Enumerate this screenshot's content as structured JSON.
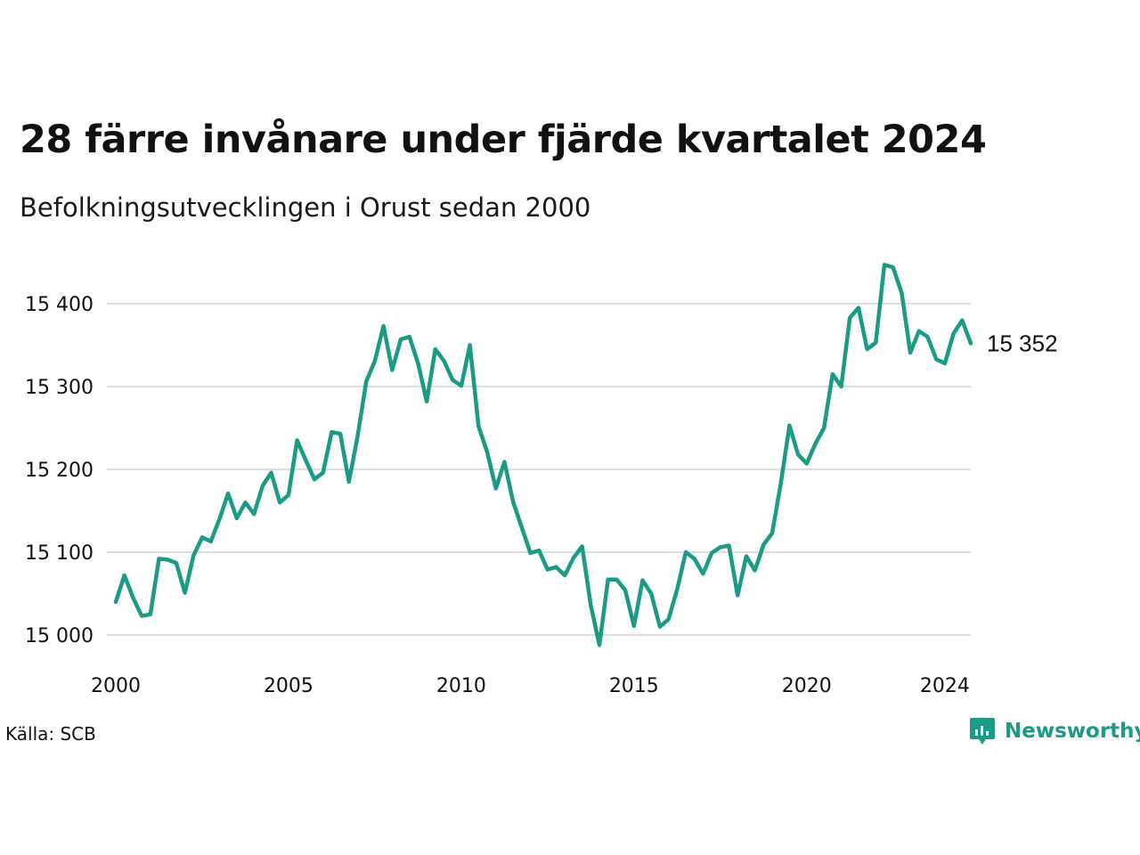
{
  "title": "28 färre invånare under fjärde kvartalet 2024",
  "subtitle": "Befolkningsutvecklingen i Orust sedan 2000",
  "source": "Källa: SCB",
  "brand": {
    "name": "Newsworthy",
    "logo_icon": "chart-bubble-icon",
    "color": "#1b9a85"
  },
  "colors": {
    "line": "#1b9a85",
    "grid": "#dddddd",
    "text": "#111111"
  },
  "end_label": "15 352",
  "chart_data": {
    "type": "line",
    "title": "28 färre invånare under fjärde kvartalet 2024",
    "subtitle": "Befolkningsutvecklingen i Orust sedan 2000",
    "xlabel": "",
    "ylabel": "",
    "ylim": [
      14985,
      15445
    ],
    "xlim": [
      2000.0,
      2024.75
    ],
    "x_ticks": [
      2000,
      2005,
      2010,
      2015,
      2020,
      2024
    ],
    "x_tick_labels": [
      "2000",
      "2005",
      "2010",
      "2015",
      "2020",
      "2024"
    ],
    "y_ticks": [
      15000,
      15100,
      15200,
      15300,
      15400
    ],
    "y_tick_labels": [
      "15 000",
      "15 100",
      "15 200",
      "15 300",
      "15 400"
    ],
    "grid": "horizontal",
    "legend": "none",
    "end_label": "15 352",
    "series": [
      {
        "start": "2000 Q1",
        "frequency": "quarterly",
        "values": [
          15040,
          15072,
          15045,
          15023,
          15025,
          15092,
          15091,
          15087,
          15051,
          15096,
          15118,
          15113,
          15140,
          15171,
          15141,
          15160,
          15146,
          15180,
          15196,
          15160,
          15169,
          15235,
          15211,
          15188,
          15196,
          15245,
          15243,
          15185,
          15240,
          15306,
          15331,
          15373,
          15320,
          15357,
          15360,
          15328,
          15282,
          15345,
          15331,
          15308,
          15301,
          15350,
          15252,
          15221,
          15177,
          15209,
          15161,
          15130,
          15099,
          15102,
          15079,
          15082,
          15072,
          15093,
          15107,
          15036,
          14988,
          15067,
          15067,
          15054,
          15011,
          15066,
          15050,
          15010,
          15019,
          15055,
          15100,
          15092,
          15074,
          15099,
          15106,
          15108,
          15048,
          15095,
          15078,
          15109,
          15123,
          15183,
          15253,
          15218,
          15207,
          15231,
          15250,
          15315,
          15300,
          15383,
          15395,
          15345,
          15353,
          15447,
          15444,
          15413,
          15341,
          15367,
          15360,
          15333,
          15328,
          15364,
          15380,
          15352
        ]
      }
    ]
  }
}
